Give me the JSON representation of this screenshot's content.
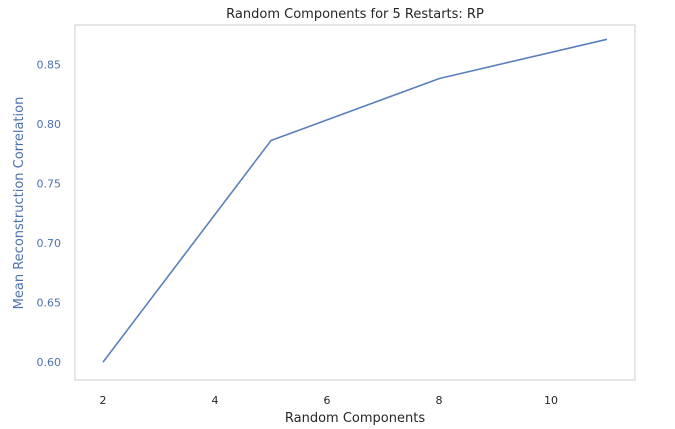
{
  "chart_data": {
    "type": "line",
    "title": "Random Components for 5 Restarts: RP",
    "xlabel": "Random Components",
    "ylabel": "Mean Reconstruction Correlation",
    "x": [
      2,
      5,
      8,
      11
    ],
    "series": [
      {
        "values": [
          0.6,
          0.786,
          0.838,
          0.871
        ],
        "color": "#5a7fbd"
      }
    ],
    "xlim": [
      1.5,
      11.5
    ],
    "ylim": [
      0.585,
      0.883
    ],
    "xticks": [
      2,
      4,
      6,
      8,
      10
    ],
    "yticks": [
      0.6,
      0.65,
      0.7,
      0.75,
      0.8,
      0.85
    ],
    "ytick_labels": [
      "0.60",
      "0.65",
      "0.70",
      "0.75",
      "0.80",
      "0.85"
    ],
    "grid": false,
    "ytick_color": "#4c72b0",
    "ylabel_color": "#4c72b0",
    "frame_color": "#cccccc"
  }
}
